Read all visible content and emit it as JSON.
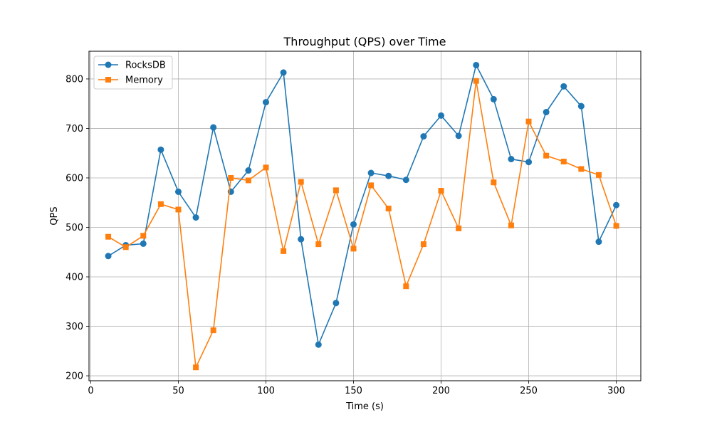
{
  "chart_data": {
    "type": "line",
    "title": "Throughput (QPS) over Time",
    "xlabel": "Time (s)",
    "ylabel": "QPS",
    "xlim": [
      -1,
      314
    ],
    "ylim": [
      190,
      856
    ],
    "xticks": [
      0,
      50,
      100,
      150,
      200,
      250,
      300
    ],
    "yticks": [
      200,
      300,
      400,
      500,
      600,
      700,
      800
    ],
    "grid": true,
    "legend_position": "upper-left",
    "x": [
      10,
      20,
      30,
      40,
      50,
      60,
      70,
      80,
      90,
      100,
      110,
      120,
      130,
      140,
      150,
      160,
      170,
      180,
      190,
      200,
      210,
      220,
      230,
      240,
      250,
      260,
      270,
      280,
      290,
      300
    ],
    "series": [
      {
        "name": "RocksDB",
        "color": "#1f77b4",
        "marker": "circle",
        "values": [
          442,
          464,
          467,
          657,
          572,
          520,
          702,
          572,
          615,
          753,
          813,
          476,
          263,
          347,
          506,
          610,
          604,
          596,
          684,
          726,
          685,
          828,
          759,
          638,
          632,
          733,
          785,
          745,
          471,
          545
        ]
      },
      {
        "name": "Memory",
        "color": "#ff7f0e",
        "marker": "square",
        "values": [
          481,
          460,
          483,
          547,
          536,
          217,
          292,
          600,
          595,
          621,
          452,
          592,
          466,
          575,
          457,
          585,
          538,
          381,
          466,
          574,
          498,
          796,
          591,
          504,
          714,
          645,
          633,
          618,
          606,
          503
        ]
      }
    ]
  }
}
